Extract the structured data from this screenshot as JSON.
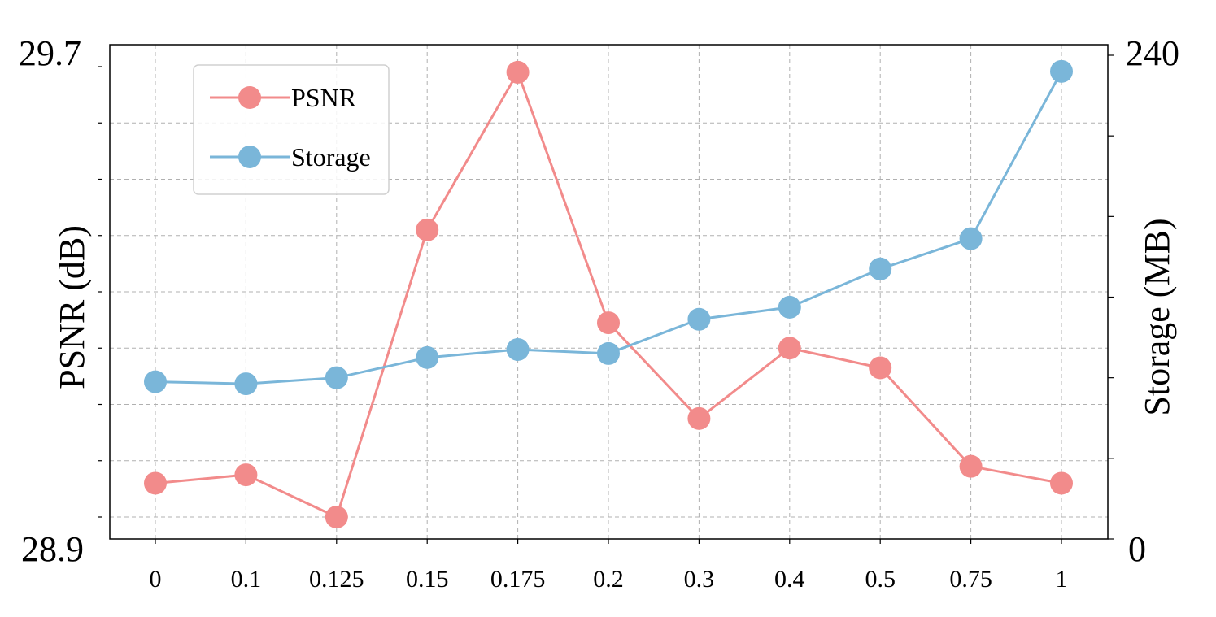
{
  "chart_data": {
    "type": "line",
    "categories": [
      "0",
      "0.1",
      "0.125",
      "0.15",
      "0.175",
      "0.2",
      "0.3",
      "0.4",
      "0.5",
      "0.75",
      "1"
    ],
    "series": [
      {
        "name": "PSNR",
        "axis": "left",
        "color": "#f28b8b",
        "values": [
          28.96,
          28.975,
          28.9,
          29.41,
          29.69,
          29.245,
          29.075,
          29.2,
          29.165,
          28.99,
          28.96
        ]
      },
      {
        "name": "Storage",
        "axis": "right",
        "color": "#7ab6d9",
        "values": [
          78,
          77,
          80,
          90,
          94,
          92,
          109,
          115,
          134,
          149,
          232
        ]
      }
    ],
    "ylabel": "PSNR (dB)",
    "ylabel_right": "Storage (MB)",
    "ylim": [
      28.9,
      29.7
    ],
    "ylim_right": [
      0,
      240
    ],
    "ytick_labels": [
      "28.9",
      "29.7"
    ],
    "ytick_labels_right": [
      "0",
      "240"
    ],
    "grid": true,
    "legend_placement": "upper-left"
  }
}
